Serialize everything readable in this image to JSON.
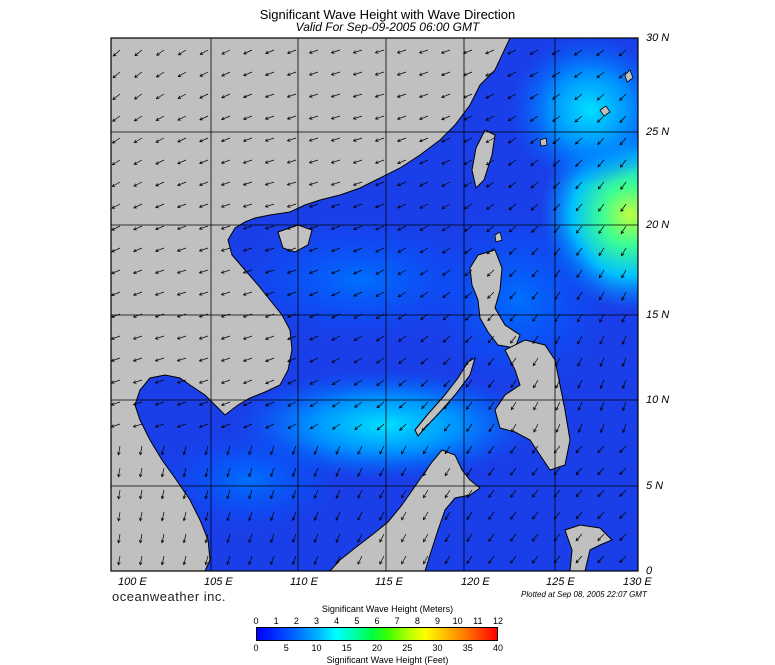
{
  "header": {
    "title": "Significant Wave Height with Wave Direction",
    "subtitle": "Valid For Sep-09-2005 06:00 GMT"
  },
  "map": {
    "lat_labels": [
      "30 N",
      "25 N",
      "20 N",
      "15 N",
      "10 N",
      "5 N",
      "0"
    ],
    "lon_labels": [
      "100 E",
      "105 E",
      "110 E",
      "115 E",
      "120 E",
      "125 E",
      "130 E"
    ],
    "land_color": "#c0c0c0",
    "sea_color": "#1f4fe0"
  },
  "footer": {
    "brand": "oceanweather inc.",
    "plotted": "Plotted at Sep 08, 2005 22:07 GMT"
  },
  "colorbar": {
    "title_meters": "Significant Wave Height (Meters)",
    "title_feet": "Significant Wave Height (Feet)",
    "meter_ticks": [
      "0",
      "1",
      "2",
      "3",
      "4",
      "5",
      "6",
      "7",
      "8",
      "9",
      "10",
      "11",
      "12"
    ],
    "feet_ticks": [
      "0",
      "5",
      "10",
      "15",
      "20",
      "25",
      "30",
      "35",
      "40"
    ]
  }
}
